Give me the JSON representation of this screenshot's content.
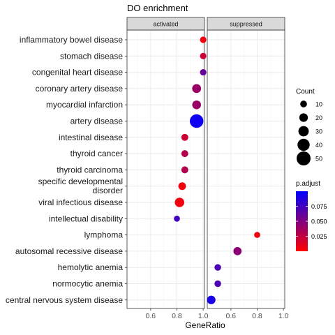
{
  "chart_data": {
    "type": "scatter",
    "title": "DO enrichment",
    "xlabel": "GeneRatio",
    "ylabel": "",
    "facets": [
      "activated",
      "suppressed"
    ],
    "xlim": [
      0.42,
      1.01
    ],
    "xticks": [
      0.6,
      0.8,
      1.0
    ],
    "xtick_labels": [
      "0.6",
      "0.8",
      "1.0"
    ],
    "categories": [
      "inflammatory bowel disease",
      "stomach disease",
      "congenital heart disease",
      "coronary artery disease",
      "myocardial infarction",
      "artery disease",
      "intestinal disease",
      "thyroid cancer",
      "thyroid carcinoma",
      "specific developmental disorder",
      "viral infectious disease",
      "intellectual disability",
      "lymphoma",
      "autosomal recessive disease",
      "hemolytic anemia",
      "normocytic anemia",
      "central nervous system disease"
    ],
    "category_lines": [
      [
        "inflammatory bowel disease"
      ],
      [
        "stomach disease"
      ],
      [
        "congenital heart disease"
      ],
      [
        "coronary artery disease"
      ],
      [
        "myocardial infarction"
      ],
      [
        "artery disease"
      ],
      [
        "intestinal disease"
      ],
      [
        "thyroid cancer"
      ],
      [
        "thyroid carcinoma"
      ],
      [
        "specific developmental",
        "disorder"
      ],
      [
        "viral infectious disease"
      ],
      [
        "intellectual disability"
      ],
      [
        "lymphoma"
      ],
      [
        "autosomal recessive disease"
      ],
      [
        "hemolytic anemia"
      ],
      [
        "normocytic anemia"
      ],
      [
        "central nervous system disease"
      ]
    ],
    "points": [
      {
        "facet": "activated",
        "category": "inflammatory bowel disease",
        "gene_ratio": 1.0,
        "count": 8,
        "p_adjust": 0.005
      },
      {
        "facet": "activated",
        "category": "stomach disease",
        "gene_ratio": 1.0,
        "count": 8,
        "p_adjust": 0.02
      },
      {
        "facet": "activated",
        "category": "congenital heart disease",
        "gene_ratio": 1.0,
        "count": 8,
        "p_adjust": 0.06
      },
      {
        "facet": "activated",
        "category": "coronary artery disease",
        "gene_ratio": 0.95,
        "count": 22,
        "p_adjust": 0.04
      },
      {
        "facet": "activated",
        "category": "myocardial infarction",
        "gene_ratio": 0.95,
        "count": 21,
        "p_adjust": 0.04
      },
      {
        "facet": "activated",
        "category": "artery disease",
        "gene_ratio": 0.95,
        "count": 48,
        "p_adjust": 0.095
      },
      {
        "facet": "activated",
        "category": "intestinal disease",
        "gene_ratio": 0.86,
        "count": 11,
        "p_adjust": 0.02
      },
      {
        "facet": "activated",
        "category": "thyroid cancer",
        "gene_ratio": 0.86,
        "count": 11,
        "p_adjust": 0.03
      },
      {
        "facet": "activated",
        "category": "thyroid carcinoma",
        "gene_ratio": 0.86,
        "count": 11,
        "p_adjust": 0.03
      },
      {
        "facet": "activated",
        "category": "specific developmental disorder",
        "gene_ratio": 0.84,
        "count": 15,
        "p_adjust": 0.005
      },
      {
        "facet": "activated",
        "category": "viral infectious disease",
        "gene_ratio": 0.82,
        "count": 25,
        "p_adjust": 0.005
      },
      {
        "facet": "activated",
        "category": "intellectual disability",
        "gene_ratio": 0.8,
        "count": 6,
        "p_adjust": 0.075
      },
      {
        "facet": "suppressed",
        "category": "lymphoma",
        "gene_ratio": 0.8,
        "count": 6,
        "p_adjust": 0.005
      },
      {
        "facet": "suppressed",
        "category": "autosomal recessive disease",
        "gene_ratio": 0.65,
        "count": 18,
        "p_adjust": 0.045
      },
      {
        "facet": "suppressed",
        "category": "hemolytic anemia",
        "gene_ratio": 0.5,
        "count": 9,
        "p_adjust": 0.07
      },
      {
        "facet": "suppressed",
        "category": "normocytic anemia",
        "gene_ratio": 0.5,
        "count": 9,
        "p_adjust": 0.07
      },
      {
        "facet": "suppressed",
        "category": "central nervous system disease",
        "gene_ratio": 0.45,
        "count": 20,
        "p_adjust": 0.09
      }
    ],
    "legend_count": {
      "title": "Count",
      "values": [
        10,
        20,
        30,
        40,
        50
      ],
      "labels": [
        "10",
        "20",
        "30",
        "40",
        "50"
      ],
      "range": [
        5,
        50
      ]
    },
    "legend_padjust": {
      "title": "p.adjust",
      "labels": [
        "0.075",
        "0.050",
        "0.025"
      ],
      "values": [
        0.075,
        0.05,
        0.025
      ],
      "range": [
        0.0,
        0.1
      ],
      "low_color": "#FF0000",
      "high_color": "#0000FF"
    },
    "grid": true,
    "legend_position": "right",
    "colors": {
      "panel_background": "#FFFFFF",
      "grid_major": "#EBEBEB",
      "grid_minor": "#F5F5F5",
      "strip_background": "#D9D9D9",
      "panel_border": "#333333"
    }
  }
}
